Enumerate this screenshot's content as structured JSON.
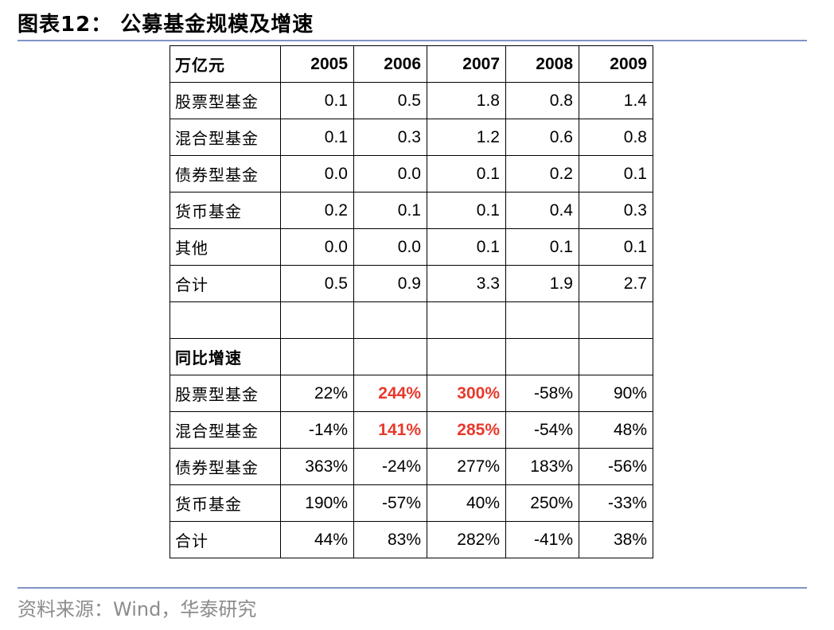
{
  "figure": {
    "title": "图表12： 公募基金规模及增速",
    "source": "资料来源：Wind，华泰研究"
  },
  "table": {
    "scale_header": {
      "unit": "万亿元",
      "years": [
        "2005",
        "2006",
        "2007",
        "2008",
        "2009"
      ]
    },
    "scale_rows": [
      {
        "label": "股票型基金",
        "values": [
          "0.1",
          "0.5",
          "1.8",
          "0.8",
          "1.4"
        ]
      },
      {
        "label": "混合型基金",
        "values": [
          "0.1",
          "0.3",
          "1.2",
          "0.6",
          "0.8"
        ]
      },
      {
        "label": "债券型基金",
        "values": [
          "0.0",
          "0.0",
          "0.1",
          "0.2",
          "0.1"
        ]
      },
      {
        "label": "货币基金",
        "values": [
          "0.2",
          "0.1",
          "0.1",
          "0.4",
          "0.3"
        ]
      },
      {
        "label": "其他",
        "values": [
          "0.0",
          "0.0",
          "0.1",
          "0.1",
          "0.1"
        ]
      },
      {
        "label": "合计",
        "values": [
          "0.5",
          "0.9",
          "3.3",
          "1.9",
          "2.7"
        ]
      }
    ],
    "growth_header": {
      "label": "同比增速"
    },
    "growth_rows": [
      {
        "label": "股票型基金",
        "values": [
          "22%",
          "244%",
          "300%",
          "-58%",
          "90%"
        ],
        "highlight": [
          false,
          true,
          true,
          false,
          false
        ]
      },
      {
        "label": "混合型基金",
        "values": [
          "-14%",
          "141%",
          "285%",
          "-54%",
          "48%"
        ],
        "highlight": [
          false,
          true,
          true,
          false,
          false
        ]
      },
      {
        "label": "债券型基金",
        "values": [
          "363%",
          "-24%",
          "277%",
          "183%",
          "-56%"
        ],
        "highlight": [
          false,
          false,
          false,
          false,
          false
        ]
      },
      {
        "label": "货币基金",
        "values": [
          "190%",
          "-57%",
          "40%",
          "250%",
          "-33%"
        ],
        "highlight": [
          false,
          false,
          false,
          false,
          false
        ]
      },
      {
        "label": "合计",
        "values": [
          "44%",
          "83%",
          "282%",
          "-41%",
          "38%"
        ],
        "highlight": [
          false,
          false,
          false,
          false,
          false
        ]
      }
    ],
    "highlight_color": "#e8392b"
  }
}
